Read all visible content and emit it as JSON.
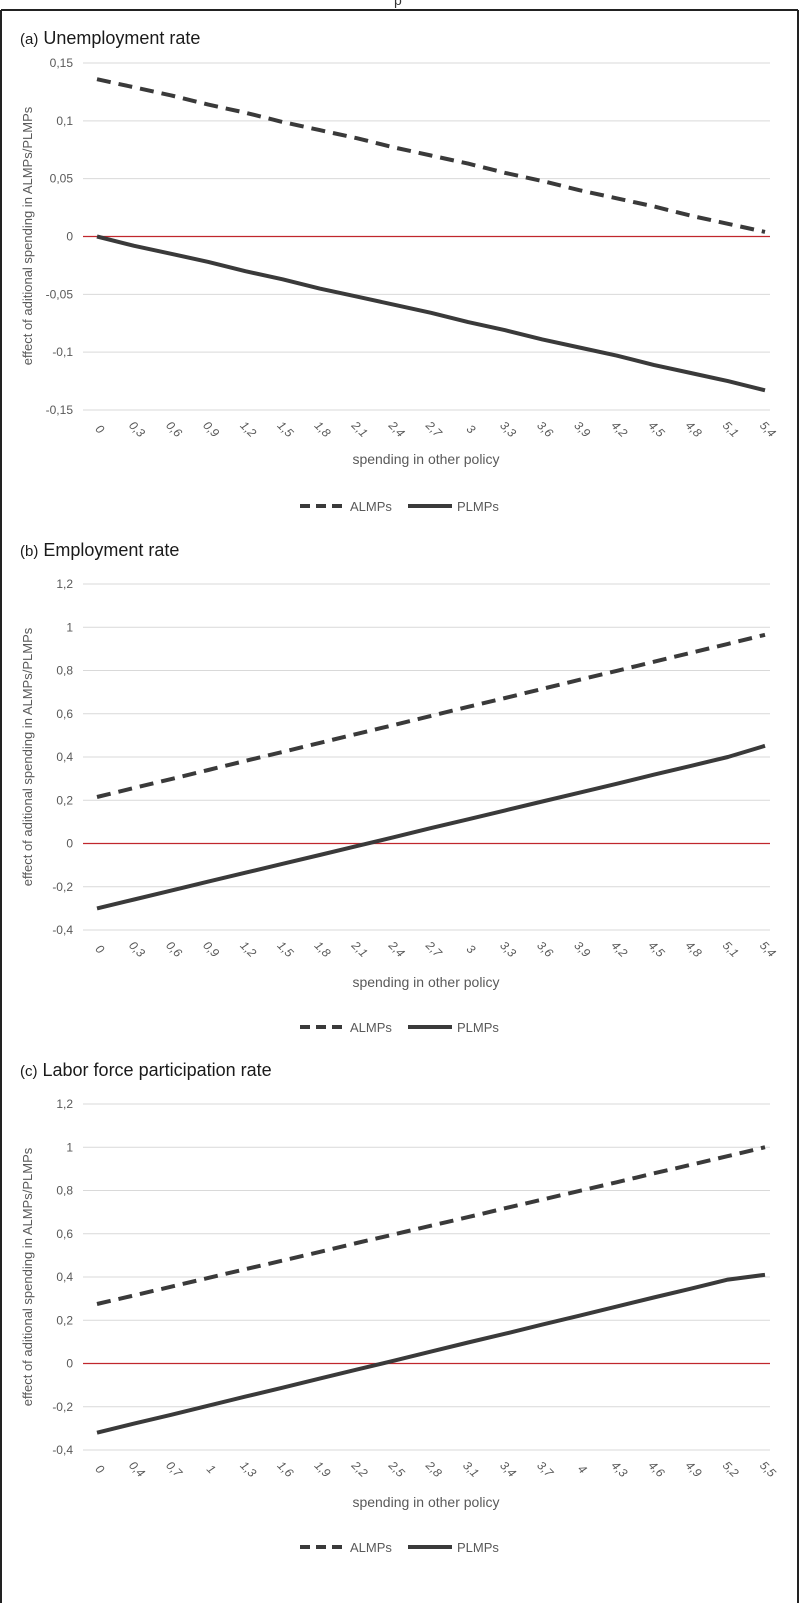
{
  "figure": {
    "top_caption": "p"
  },
  "chart_data": [
    {
      "type": "line",
      "panel_letter": "(a)",
      "title": "Unemployment rate",
      "xlabel": "spending in other policy",
      "ylabel": "effect of aditional spending in ALMPs/PLMPs",
      "categories": [
        "0",
        "0,3",
        "0,6",
        "0,9",
        "1,2",
        "1,5",
        "1,8",
        "2,1",
        "2,4",
        "2,7",
        "3",
        "3,3",
        "3,6",
        "3,9",
        "4,2",
        "4,5",
        "4,8",
        "5,1",
        "5,4"
      ],
      "ylim": [
        -0.15,
        0.15
      ],
      "yticks": [
        0.15,
        0.1,
        0.05,
        0,
        -0.05,
        -0.1,
        -0.15
      ],
      "ytick_labels": [
        "0,15",
        "0,1",
        "0,05",
        "0",
        "-0,05",
        "-0,1",
        "-0,15"
      ],
      "series": [
        {
          "name": "ALMPs",
          "style": "dashed",
          "values": [
            0.136,
            0.129,
            0.122,
            0.114,
            0.107,
            0.099,
            0.092,
            0.085,
            0.077,
            0.07,
            0.063,
            0.055,
            0.048,
            0.04,
            0.033,
            0.026,
            0.018,
            0.011,
            0.004
          ]
        },
        {
          "name": "PLMPs",
          "style": "solid",
          "values": [
            0.0,
            -0.008,
            -0.015,
            -0.022,
            -0.03,
            -0.037,
            -0.045,
            -0.052,
            -0.059,
            -0.066,
            -0.074,
            -0.081,
            -0.089,
            -0.096,
            -0.103,
            -0.111,
            -0.118,
            -0.125,
            -0.133
          ]
        }
      ],
      "legend": [
        "ALMPs",
        "PLMPs"
      ],
      "legend_position": "bottom",
      "grid": true
    },
    {
      "type": "line",
      "panel_letter": "(b)",
      "title": "Employment rate",
      "xlabel": "spending in other policy",
      "ylabel": "effect of aditional spending in ALMPs/PLMPs",
      "categories": [
        "0",
        "0,3",
        "0,6",
        "0,9",
        "1,2",
        "1,5",
        "1,8",
        "2,1",
        "2,4",
        "2,7",
        "3",
        "3,3",
        "3,6",
        "3,9",
        "4,2",
        "4,5",
        "4,8",
        "5,1",
        "5,4"
      ],
      "ylim": [
        -0.4,
        1.2
      ],
      "yticks": [
        1.2,
        1,
        0.8,
        0.6,
        0.4,
        0.2,
        0,
        -0.2,
        -0.4
      ],
      "ytick_labels": [
        "1,2",
        "1",
        "0,8",
        "0,6",
        "0,4",
        "0,2",
        "0",
        "-0,2",
        "-0,4"
      ],
      "series": [
        {
          "name": "ALMPs",
          "style": "dashed",
          "values": [
            0.215,
            0.257,
            0.298,
            0.34,
            0.382,
            0.423,
            0.465,
            0.507,
            0.548,
            0.59,
            0.632,
            0.673,
            0.715,
            0.757,
            0.798,
            0.84,
            0.882,
            0.923,
            0.965
          ]
        },
        {
          "name": "PLMPs",
          "style": "solid",
          "values": [
            -0.3,
            -0.259,
            -0.218,
            -0.176,
            -0.135,
            -0.094,
            -0.053,
            -0.012,
            0.029,
            0.071,
            0.112,
            0.153,
            0.194,
            0.235,
            0.276,
            0.318,
            0.359,
            0.4,
            0.452
          ]
        }
      ],
      "legend": [
        "ALMPs",
        "PLMPs"
      ],
      "legend_position": "bottom",
      "grid": true
    },
    {
      "type": "line",
      "panel_letter": "(c)",
      "title": "Labor force participation rate",
      "xlabel": "spending in other policy",
      "ylabel": "effect of aditional spending in ALMPs/PLMPs",
      "categories": [
        "0",
        "0,4",
        "0,7",
        "1",
        "1,3",
        "1,6",
        "1,9",
        "2,2",
        "2,5",
        "2,8",
        "3,1",
        "3,4",
        "3,7",
        "4",
        "4,3",
        "4,6",
        "4,9",
        "5,2",
        "5,5"
      ],
      "ylim": [
        -0.4,
        1.2
      ],
      "yticks": [
        1.2,
        1,
        0.8,
        0.6,
        0.4,
        0.2,
        0,
        -0.2,
        -0.4
      ],
      "ytick_labels": [
        "1,2",
        "1",
        "0,8",
        "0,6",
        "0,4",
        "0,2",
        "0",
        "-0,2",
        "-0,4"
      ],
      "series": [
        {
          "name": "ALMPs",
          "style": "dashed",
          "values": [
            0.275,
            0.315,
            0.355,
            0.396,
            0.436,
            0.476,
            0.516,
            0.557,
            0.597,
            0.637,
            0.677,
            0.718,
            0.758,
            0.798,
            0.838,
            0.879,
            0.919,
            0.959,
            1.0
          ]
        },
        {
          "name": "PLMPs",
          "style": "solid",
          "values": [
            -0.32,
            -0.278,
            -0.237,
            -0.195,
            -0.153,
            -0.112,
            -0.07,
            -0.028,
            0.013,
            0.055,
            0.097,
            0.138,
            0.18,
            0.221,
            0.263,
            0.305,
            0.346,
            0.388,
            0.41
          ]
        }
      ],
      "legend": [
        "ALMPs",
        "PLMPs"
      ],
      "legend_position": "bottom",
      "grid": true
    }
  ]
}
